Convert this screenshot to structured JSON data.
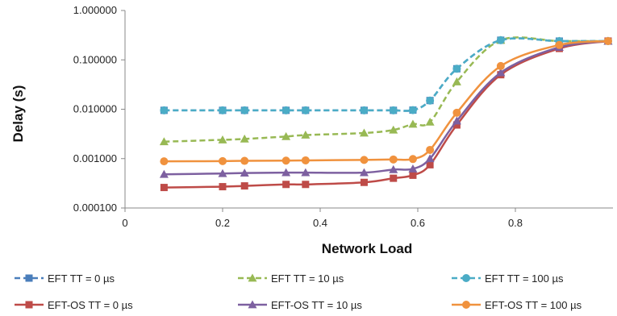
{
  "chart_data": {
    "type": "line",
    "title": "",
    "xlabel": "Network Load",
    "ylabel": "Delay (s)",
    "xlim": [
      0,
      1
    ],
    "ylim": [
      0.0001,
      1
    ],
    "y_scale": "log",
    "x_ticks": [
      0,
      0.2,
      0.4,
      0.6,
      0.8
    ],
    "x_tick_labels": [
      "0",
      "0.2",
      "0.4",
      "0.6",
      "0.8"
    ],
    "y_ticks": [
      0.0001,
      0.001,
      0.01,
      0.1,
      1
    ],
    "y_tick_labels": [
      "0.000100",
      "0.001000",
      "0.010000",
      "0.100000",
      "1.000000"
    ],
    "grid": false,
    "legend_position": "bottom",
    "series": [
      {
        "name": "EFT TT = 0 µs",
        "color": "#4a7ebb",
        "dashed": true,
        "marker": "square",
        "x": [
          0.08,
          0.2,
          0.245,
          0.33,
          0.37,
          0.49,
          0.55,
          0.59,
          0.625,
          0.68,
          0.77,
          0.89,
          0.99
        ],
        "y": [
          0.0095,
          0.0095,
          0.0095,
          0.0095,
          0.0095,
          0.0095,
          0.0095,
          0.0096,
          0.015,
          0.066,
          0.25,
          0.24,
          0.24
        ]
      },
      {
        "name": "EFT TT = 10 µs",
        "color": "#98b954",
        "dashed": true,
        "marker": "triangle",
        "x": [
          0.08,
          0.2,
          0.245,
          0.33,
          0.37,
          0.49,
          0.55,
          0.59,
          0.625,
          0.68,
          0.77,
          0.89,
          0.99
        ],
        "y": [
          0.0022,
          0.0024,
          0.0025,
          0.0028,
          0.003,
          0.0033,
          0.0038,
          0.005,
          0.0055,
          0.036,
          0.25,
          0.24,
          0.24
        ]
      },
      {
        "name": "EFT TT = 100 µs",
        "color": "#4bacc6",
        "dashed": true,
        "marker": "circle",
        "x": [
          0.08,
          0.2,
          0.245,
          0.33,
          0.37,
          0.49,
          0.55,
          0.59,
          0.625,
          0.68,
          0.77,
          0.89,
          0.99
        ],
        "y": [
          0.0095,
          0.0095,
          0.0095,
          0.0095,
          0.0095,
          0.0095,
          0.0095,
          0.0096,
          0.015,
          0.066,
          0.25,
          0.24,
          0.24
        ]
      },
      {
        "name": "EFT-OS TT = 0 µs",
        "color": "#be4b48",
        "dashed": false,
        "marker": "square",
        "x": [
          0.08,
          0.2,
          0.245,
          0.33,
          0.37,
          0.49,
          0.55,
          0.59,
          0.625,
          0.68,
          0.77,
          0.89,
          0.99
        ],
        "y": [
          0.00026,
          0.00027,
          0.00028,
          0.0003,
          0.0003,
          0.00033,
          0.0004,
          0.00046,
          0.00075,
          0.0048,
          0.05,
          0.17,
          0.24
        ]
      },
      {
        "name": "EFT-OS TT = 10 µs",
        "color": "#7d60a0",
        "dashed": false,
        "marker": "triangle",
        "x": [
          0.08,
          0.2,
          0.245,
          0.33,
          0.37,
          0.49,
          0.55,
          0.59,
          0.625,
          0.68,
          0.77,
          0.89,
          0.99
        ],
        "y": [
          0.00048,
          0.0005,
          0.00051,
          0.00052,
          0.00052,
          0.00052,
          0.0006,
          0.00062,
          0.001,
          0.0058,
          0.055,
          0.18,
          0.24
        ]
      },
      {
        "name": "EFT-OS TT = 100 µs",
        "color": "#f0923e",
        "dashed": false,
        "marker": "circle",
        "x": [
          0.08,
          0.2,
          0.245,
          0.33,
          0.37,
          0.49,
          0.55,
          0.59,
          0.625,
          0.68,
          0.77,
          0.89,
          0.99
        ],
        "y": [
          0.00088,
          0.00089,
          0.0009,
          0.00091,
          0.00092,
          0.00094,
          0.00096,
          0.00098,
          0.0015,
          0.0085,
          0.075,
          0.2,
          0.24
        ]
      }
    ]
  }
}
